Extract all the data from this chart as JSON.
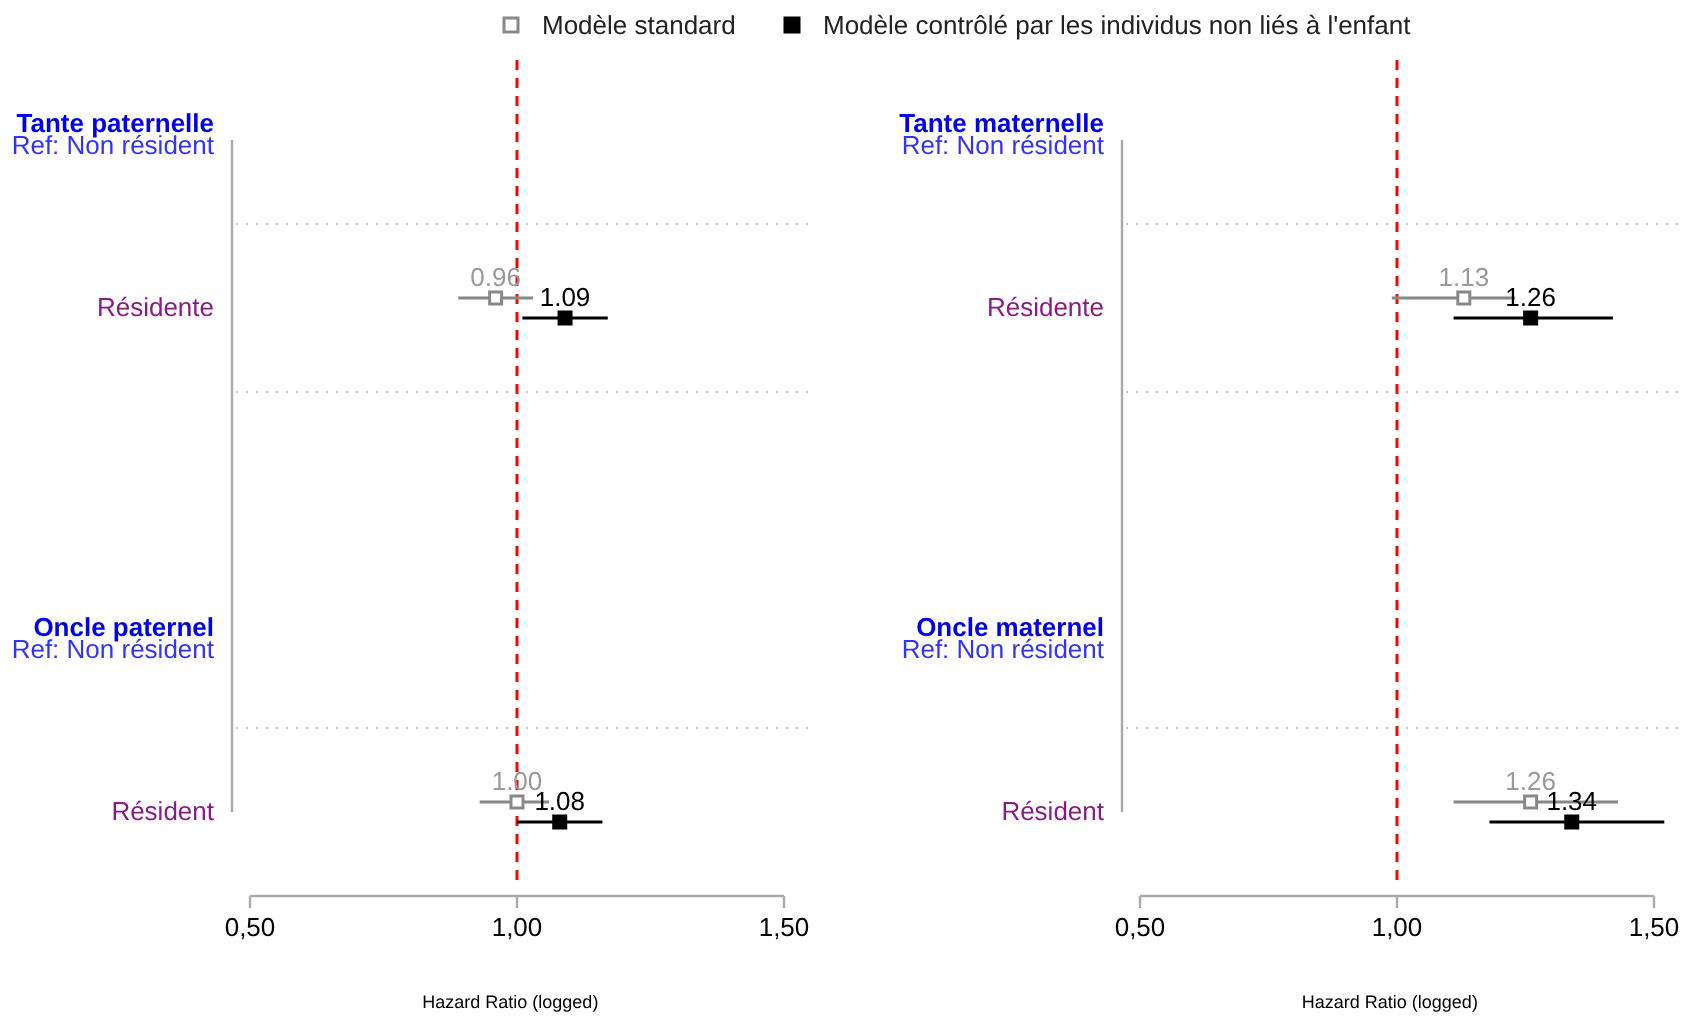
{
  "chart_data": [
    {
      "type": "scatter",
      "orientation": "horizontal",
      "categories": [
        "Tante paternelle\nRef: Non résident",
        "Résidente",
        null,
        "Oncle paternel\nRef: Non résident",
        "Résident"
      ],
      "xlim": [
        0.5,
        1.55
      ],
      "xticks": [
        {
          "value": 0.5,
          "label": "0,50"
        },
        {
          "value": 1,
          "label": "1,00"
        },
        {
          "value": 1.5,
          "label": "1,50"
        }
      ],
      "xlabel": "Hazard Ratio (logged)",
      "marker": "square",
      "grid": "y",
      "legend": "top",
      "ref_lines": [
        {
          "axis": "x",
          "value": 1,
          "color": "#ff0000",
          "line_style": "dashed"
        }
      ],
      "series": [
        {
          "name": "Modèle standard",
          "color": "#888888",
          "values": [
            null,
            0.96,
            null,
            null,
            1.0
          ],
          "value_labels": [
            null,
            "0.96",
            null,
            null,
            "1.00"
          ],
          "errors": [
            null,
            [
              0.89,
              1.03
            ],
            null,
            null,
            [
              0.93,
              1.06
            ]
          ]
        },
        {
          "name": "Modèle contrôlé par les individus non liés à l'enfant",
          "color": "#000000",
          "values": [
            null,
            1.09,
            null,
            null,
            1.08
          ],
          "value_labels": [
            null,
            "1.09",
            null,
            null,
            "1.08"
          ],
          "errors": [
            null,
            [
              1.01,
              1.17
            ],
            null,
            null,
            [
              1.0,
              1.16
            ]
          ]
        }
      ]
    },
    {
      "type": "scatter",
      "orientation": "horizontal",
      "categories": [
        "Tante maternelle\nRef: Non résident",
        "Résidente",
        null,
        "Oncle maternel\nRef: Non résident",
        "Résident"
      ],
      "xlim": [
        0.5,
        1.55
      ],
      "xticks": [
        {
          "value": 0.5,
          "label": "0,50"
        },
        {
          "value": 1,
          "label": "1,00"
        },
        {
          "value": 1.5,
          "label": "1,50"
        }
      ],
      "xlabel": "Hazard Ratio (logged)",
      "marker": "square",
      "grid": "y",
      "ref_lines": [
        {
          "axis": "x",
          "value": 1,
          "color": "#ff0000",
          "line_style": "dashed"
        }
      ],
      "series": [
        {
          "color": "#888888",
          "values": [
            null,
            1.13,
            null,
            null,
            1.26
          ],
          "value_labels": [
            null,
            "1.13",
            null,
            null,
            "1.26"
          ],
          "errors": [
            null,
            [
              0.99,
              1.23
            ],
            null,
            null,
            [
              1.11,
              1.43
            ]
          ]
        },
        {
          "color": "#000000",
          "values": [
            null,
            1.26,
            null,
            null,
            1.34
          ],
          "value_labels": [
            null,
            "1.26",
            null,
            null,
            "1.34"
          ],
          "errors": [
            null,
            [
              1.11,
              1.42
            ],
            null,
            null,
            [
              1.18,
              1.52
            ]
          ]
        }
      ]
    }
  ]
}
